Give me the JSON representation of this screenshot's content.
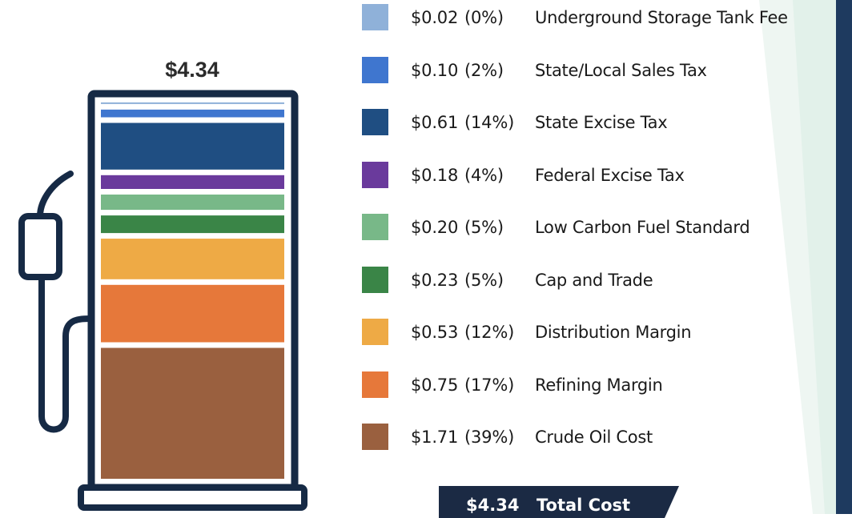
{
  "colors": {
    "outline": "#162a45",
    "banner": "#1b2a44",
    "right_bar": "#1e3a5f"
  },
  "chart_data": {
    "type": "bar",
    "stacked": true,
    "total_label": "$4.34",
    "categories": [
      "Underground Storage Tank Fee",
      "State/Local Sales Tax",
      "State Excise Tax",
      "Federal Excise Tax",
      "Low Carbon Fuel Standard",
      "Cap and Trade",
      "Distribution Margin",
      "Refining Margin",
      "Crude Oil Cost"
    ],
    "values": [
      0.02,
      0.1,
      0.61,
      0.18,
      0.2,
      0.23,
      0.53,
      0.75,
      1.71
    ],
    "amount_labels": [
      "$0.02",
      "$0.10",
      "$0.61",
      "$0.18",
      "$0.20",
      "$0.23",
      "$0.53",
      "$0.75",
      "$1.71"
    ],
    "percent_labels": [
      "(0%)",
      "(2%)",
      "(14%)",
      "(4%)",
      "(5%)",
      "(5%)",
      "(12%)",
      "(17%)",
      "(39%)"
    ],
    "colors": [
      "#8fb1d9",
      "#3f76cf",
      "#1f4e82",
      "#6a3a9c",
      "#78b888",
      "#3a8547",
      "#eeaa45",
      "#e6783a",
      "#9a603f"
    ],
    "total": {
      "value": "$4.34",
      "label": "Total Cost"
    }
  }
}
